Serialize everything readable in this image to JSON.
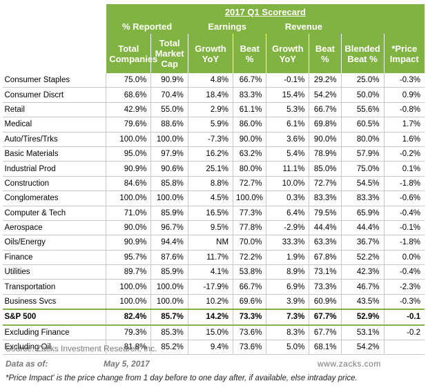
{
  "title": "2017 Q1 Scorecard",
  "groups": {
    "reported": "% Reported",
    "earnings": "Earnings",
    "revenue": "Revenue"
  },
  "columns": {
    "total_companies": "Total Companies",
    "total_market_cap": "Total Market Cap",
    "earnings_growth": "Growth YoY",
    "earnings_beat": "Beat %",
    "revenue_growth": "Growth YoY",
    "revenue_beat": "Beat %",
    "blended_beat": "Blended Beat %",
    "price_impact": "*Price Impact"
  },
  "rows": [
    {
      "name": "Consumer Staples",
      "v": [
        "75.0%",
        "90.9%",
        "4.8%",
        "66.7%",
        "-0.1%",
        "29.2%",
        "25.0%",
        "-0.3%"
      ]
    },
    {
      "name": "Consumer Discrt",
      "v": [
        "68.6%",
        "70.4%",
        "18.4%",
        "83.3%",
        "15.4%",
        "54.2%",
        "50.0%",
        "0.9%"
      ]
    },
    {
      "name": "Retail",
      "v": [
        "42.9%",
        "55.0%",
        "2.9%",
        "61.1%",
        "5.3%",
        "66.7%",
        "55.6%",
        "-0.8%"
      ]
    },
    {
      "name": "Medical",
      "v": [
        "79.6%",
        "88.6%",
        "5.9%",
        "86.0%",
        "6.1%",
        "69.8%",
        "60.5%",
        "1.7%"
      ]
    },
    {
      "name": "Auto/Tires/Trks",
      "v": [
        "100.0%",
        "100.0%",
        "-7.3%",
        "90.0%",
        "3.6%",
        "90.0%",
        "80.0%",
        "1.6%"
      ]
    },
    {
      "name": "Basic Materials",
      "v": [
        "95.0%",
        "97.9%",
        "16.2%",
        "63.2%",
        "5.4%",
        "78.9%",
        "57.9%",
        "-0.2%"
      ]
    },
    {
      "name": "Industrial Prod",
      "v": [
        "90.9%",
        "90.6%",
        "25.1%",
        "80.0%",
        "11.1%",
        "85.0%",
        "75.0%",
        "0.1%"
      ]
    },
    {
      "name": "Construction",
      "v": [
        "84.6%",
        "85.8%",
        "8.8%",
        "72.7%",
        "10.0%",
        "72.7%",
        "54.5%",
        "-1.8%"
      ]
    },
    {
      "name": "Conglomerates",
      "v": [
        "100.0%",
        "100.0%",
        "4.5%",
        "100.0%",
        "0.3%",
        "83.3%",
        "83.3%",
        "-0.6%"
      ]
    },
    {
      "name": "Computer & Tech",
      "v": [
        "71.0%",
        "85.9%",
        "16.5%",
        "77.3%",
        "6.4%",
        "79.5%",
        "65.9%",
        "-0.4%"
      ]
    },
    {
      "name": "Aerospace",
      "v": [
        "90.0%",
        "96.7%",
        "9.5%",
        "77.8%",
        "-2.9%",
        "44.4%",
        "44.4%",
        "-0.1%"
      ]
    },
    {
      "name": "Oils/Energy",
      "v": [
        "90.9%",
        "94.4%",
        "NM",
        "70.0%",
        "33.3%",
        "63.3%",
        "36.7%",
        "-1.8%"
      ]
    },
    {
      "name": "Finance",
      "v": [
        "95.7%",
        "87.6%",
        "11.7%",
        "72.2%",
        "1.9%",
        "67.8%",
        "52.2%",
        "0.0%"
      ]
    },
    {
      "name": "Utilities",
      "v": [
        "89.7%",
        "85.9%",
        "4.1%",
        "53.8%",
        "8.9%",
        "73.1%",
        "42.3%",
        "-0.4%"
      ]
    },
    {
      "name": "Transportation",
      "v": [
        "100.0%",
        "100.0%",
        "-17.9%",
        "66.7%",
        "6.9%",
        "73.3%",
        "46.7%",
        "-2.3%"
      ]
    },
    {
      "name": "Business Svcs",
      "v": [
        "100.0%",
        "100.0%",
        "10.2%",
        "69.6%",
        "3.9%",
        "60.9%",
        "43.5%",
        "-0.3%"
      ]
    }
  ],
  "sp500": {
    "name": "S&P 500",
    "v": [
      "82.4%",
      "85.7%",
      "14.2%",
      "73.3%",
      "7.3%",
      "67.7%",
      "52.9%",
      "-0.1"
    ]
  },
  "extra_rows": [
    {
      "name": "Excluding Finance",
      "v": [
        "79.3%",
        "85.3%",
        "15.0%",
        "73.6%",
        "8.3%",
        "67.7%",
        "53.1%",
        "-0.2"
      ]
    },
    {
      "name": "Excluding Oil",
      "v": [
        "81.8%",
        "85.2%",
        "9.4%",
        "73.6%",
        "5.0%",
        "68.1%",
        "54.2%",
        ""
      ]
    }
  ],
  "footer": {
    "source": "Source: Zacks Investment Research, Inc.",
    "data_as_of_label": "Data as of:",
    "data_as_of_date": "May 5, 2017",
    "site": "www.zacks.com",
    "note": "*Price Impact' is the price change from 1 day before to one day after, if available, else intraday price."
  },
  "colors": {
    "header_green": "#80b342",
    "header_text": "#ffffff"
  }
}
